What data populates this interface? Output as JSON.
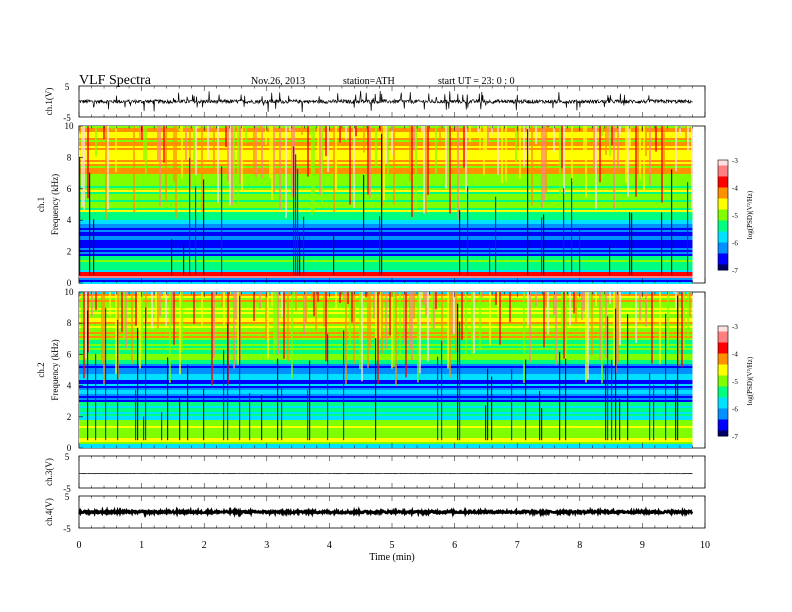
{
  "header": {
    "title": "VLF  Spectra",
    "date": "Nov.26, 2013",
    "station": "station=ATH",
    "start": "start  UT  =   23: 0  : 0"
  },
  "chart_data": [
    {
      "type": "line",
      "panel": "ch1-waveform",
      "ylabel": "ch.1(V)",
      "yticks": [
        "5",
        "-5"
      ],
      "ylim": [
        -5,
        5
      ],
      "xlim": [
        0,
        10
      ],
      "x_end": 9.8,
      "series": [
        {
          "baseline": 0,
          "noise": 0.6,
          "spike_density": 0.05,
          "spike_amp": 3
        }
      ]
    },
    {
      "type": "heatmap",
      "panel": "ch1-spectrogram",
      "ylabel": [
        "ch.1",
        "Frequency  (kHz)"
      ],
      "yticks": [
        "0",
        "2",
        "4",
        "6",
        "8",
        "10"
      ],
      "ylim": [
        0,
        10
      ],
      "xlim": [
        0,
        10
      ],
      "x_end": 9.8,
      "colorbar": {
        "label": "log(PSD)(V²/Hz)",
        "ticks": [
          "-3",
          "-4",
          "-5",
          "-6",
          "-7"
        ],
        "range": [
          -7,
          -3
        ]
      },
      "band_profile": [
        {
          "f": [
            0.0,
            0.35
          ],
          "value": -6.2
        },
        {
          "f": [
            0.35,
            0.75
          ],
          "value": -3.6
        },
        {
          "f": [
            0.75,
            1.0
          ],
          "value": -5.3
        },
        {
          "f": [
            1.0,
            1.8
          ],
          "value": -5.2
        },
        {
          "f": [
            1.8,
            3.8
          ],
          "value": -6.4
        },
        {
          "f": [
            3.8,
            4.4
          ],
          "value": -5.6
        },
        {
          "f": [
            4.4,
            7.0
          ],
          "value": -5.1
        },
        {
          "f": [
            7.0,
            10.0
          ],
          "value": -4.5
        }
      ]
    },
    {
      "type": "heatmap",
      "panel": "ch2-spectrogram",
      "ylabel": [
        "ch.2",
        "Frequency  (kHz)"
      ],
      "yticks": [
        "0",
        "2",
        "4",
        "6",
        "8",
        "10"
      ],
      "ylim": [
        0,
        10
      ],
      "xlim": [
        0,
        10
      ],
      "x_end": 9.8,
      "colorbar": {
        "label": "log(PSD)(V²/Hz)",
        "ticks": [
          "-3",
          "-4",
          "-5",
          "-6",
          "-7"
        ],
        "range": [
          -7,
          -3
        ]
      },
      "band_profile": [
        {
          "f": [
            0.0,
            0.3
          ],
          "value": -6.0
        },
        {
          "f": [
            0.3,
            1.8
          ],
          "value": -4.9
        },
        {
          "f": [
            1.8,
            3.0
          ],
          "value": -5.6
        },
        {
          "f": [
            3.0,
            5.4
          ],
          "value": -6.2
        },
        {
          "f": [
            5.4,
            7.0
          ],
          "value": -5.2
        },
        {
          "f": [
            7.0,
            10.0
          ],
          "value": -4.7
        }
      ]
    },
    {
      "type": "line",
      "panel": "ch3-waveform",
      "ylabel": "ch.3(V)",
      "yticks": [
        "5",
        "-5"
      ],
      "ylim": [
        -5,
        5
      ],
      "xlim": [
        0,
        10
      ],
      "x_end": 9.8,
      "series": [
        {
          "baseline": -0.5,
          "noise": 0.05,
          "spike_density": 0.0,
          "spike_amp": 0
        }
      ]
    },
    {
      "type": "line",
      "panel": "ch4-waveform",
      "ylabel": "ch.4(V)",
      "yticks": [
        "5",
        "-5"
      ],
      "ylim": [
        -5,
        5
      ],
      "xlim": [
        0,
        10
      ],
      "x_end": 9.8,
      "series": [
        {
          "baseline": 0,
          "noise": 0.35,
          "spike_density": 0.0,
          "spike_amp": 0
        }
      ]
    }
  ],
  "x_axis": {
    "label": "Time  (min)",
    "ticks": [
      "0",
      "1",
      "2",
      "3",
      "4",
      "5",
      "6",
      "7",
      "8",
      "9",
      "10"
    ]
  },
  "colormap": [
    "#000066",
    "#0000ff",
    "#0090ff",
    "#00e0ff",
    "#00ff80",
    "#80ff00",
    "#ffff00",
    "#ff9000",
    "#ff0000",
    "#ff8080",
    "#ffe0e0"
  ]
}
